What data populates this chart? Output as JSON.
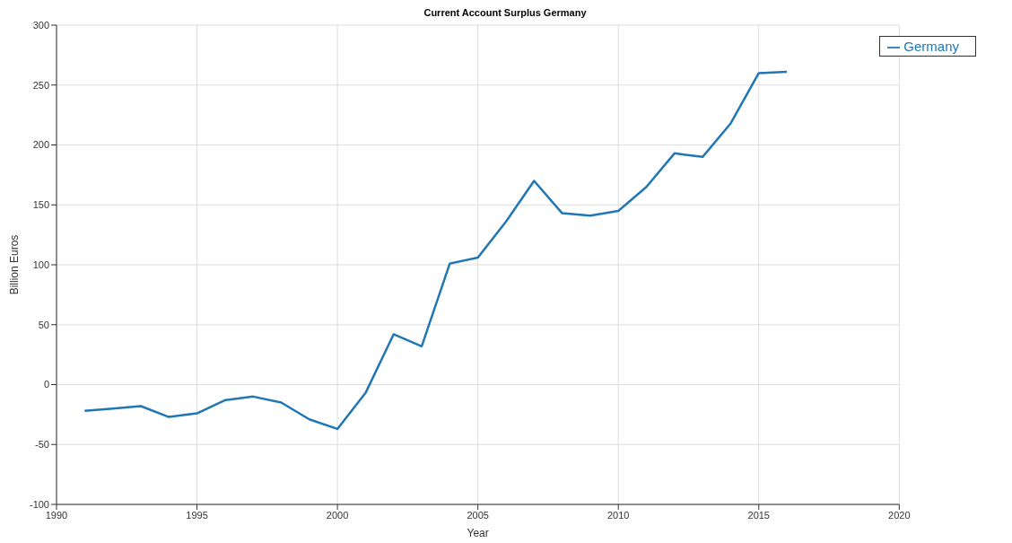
{
  "chart_data": {
    "type": "line",
    "title": "Current Account Surplus Germany",
    "xlabel": "Year",
    "ylabel": "Billion Euros",
    "x": [
      1991,
      1992,
      1993,
      1994,
      1995,
      1996,
      1997,
      1998,
      1999,
      2000,
      2001,
      2002,
      2003,
      2004,
      2005,
      2006,
      2007,
      2008,
      2009,
      2010,
      2011,
      2012,
      2013,
      2014,
      2015,
      2016
    ],
    "series": [
      {
        "name": "Germany",
        "color": "#2077b4",
        "values": [
          -22,
          -20,
          -18,
          -27,
          -24,
          -13,
          -10,
          -15,
          -29,
          -37,
          -7,
          42,
          32,
          101,
          106,
          136,
          170,
          143,
          141,
          145,
          165,
          193,
          190,
          218,
          260,
          261
        ]
      }
    ],
    "xlim": [
      1990,
      2020
    ],
    "xticks": [
      1990,
      1995,
      2000,
      2005,
      2010,
      2015,
      2020
    ],
    "ylim": [
      -100,
      300
    ],
    "yticks": [
      -100,
      -50,
      0,
      50,
      100,
      150,
      200,
      250,
      300
    ],
    "grid": true,
    "legend": "top right",
    "marker": "none",
    "line_style": "solid"
  }
}
